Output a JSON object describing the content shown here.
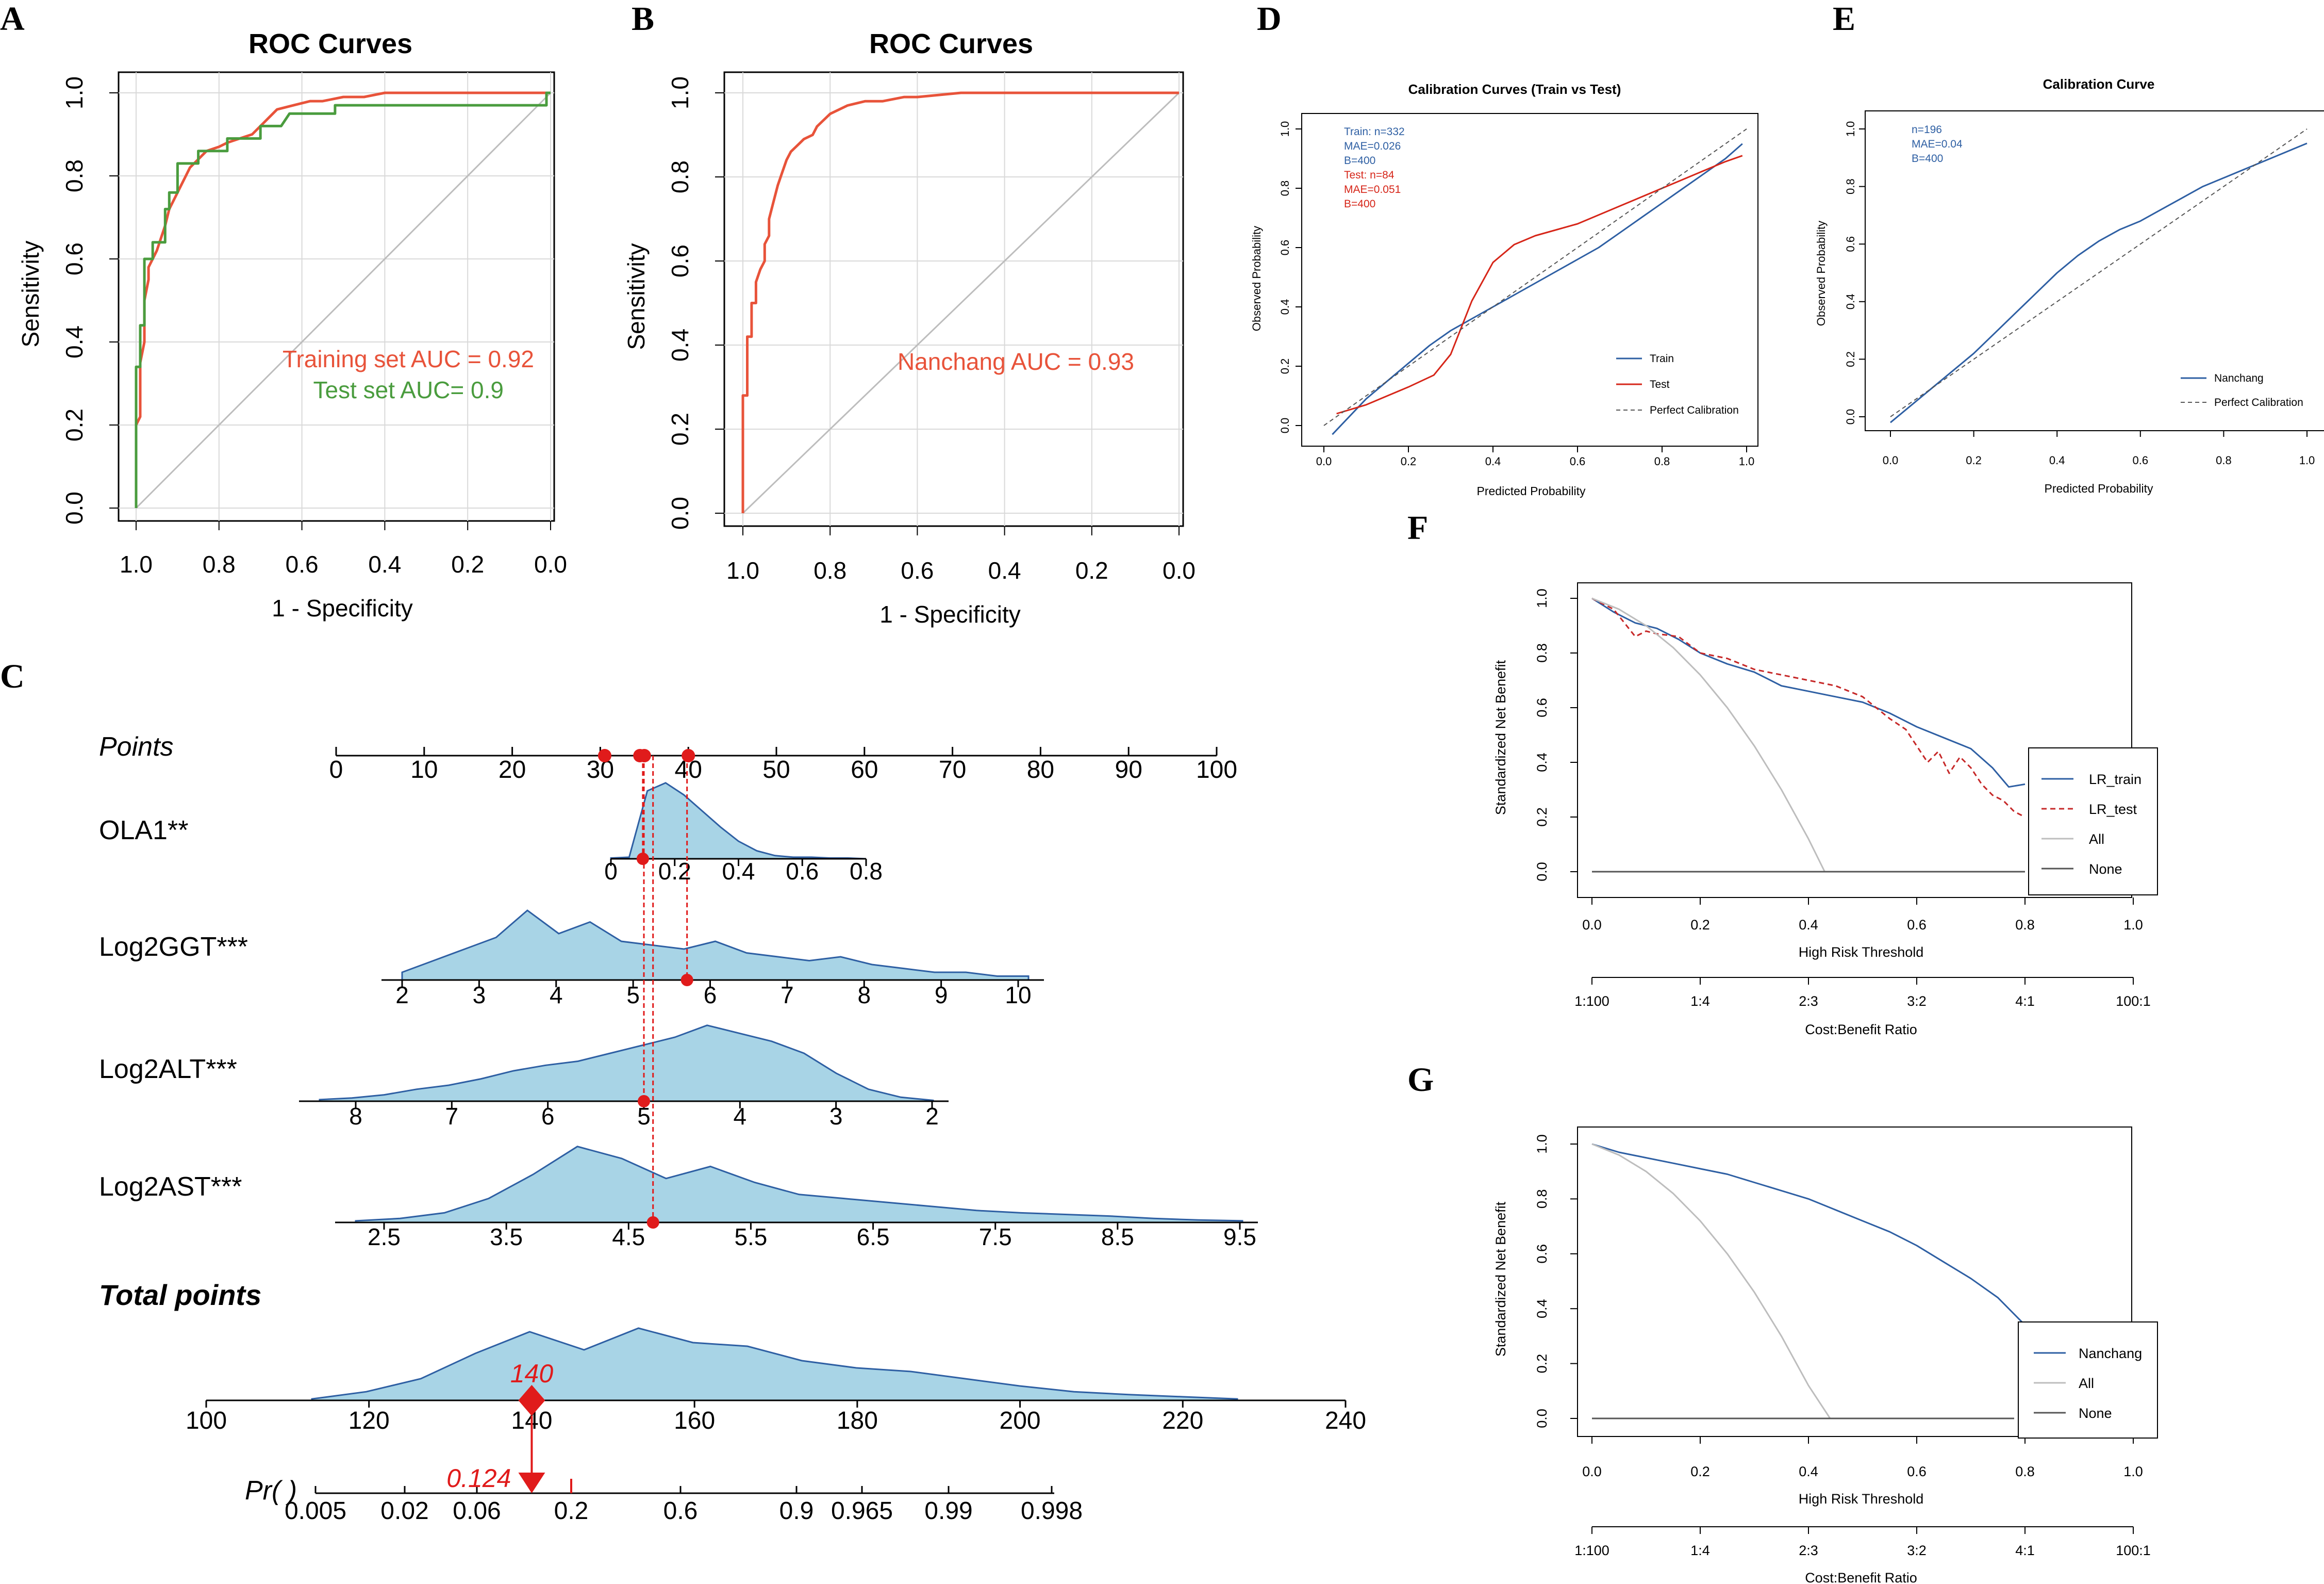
{
  "colors": {
    "train_red": "#e8533a",
    "test_green": "#4a9c3e",
    "blue": "#2e5fa3",
    "red": "#d62518",
    "fill": "#a8d4e6",
    "grid": "#d9d9d9",
    "grey": "#bdbdbd"
  },
  "panels": {
    "A": "A",
    "B": "B",
    "C": "C",
    "D": "D",
    "E": "E",
    "F": "F",
    "G": "G"
  },
  "chart_data": [
    {
      "id": "A",
      "type": "line",
      "title": "ROC Curves",
      "xlabel": "1 - Specificity",
      "ylabel": "Sensitivity",
      "xlim": [
        1.0,
        0.0
      ],
      "ylim": [
        0.0,
        1.0
      ],
      "xticks": [
        "1.0",
        "0.8",
        "0.6",
        "0.4",
        "0.2",
        "0.0"
      ],
      "yticks": [
        "0.0",
        "0.2",
        "0.4",
        "0.6",
        "0.8",
        "1.0"
      ],
      "series": [
        {
          "name": "Training set",
          "color": "#e8533a",
          "x": [
            1.0,
            1.0,
            0.99,
            0.99,
            0.98,
            0.98,
            0.97,
            0.97,
            0.96,
            0.95,
            0.94,
            0.93,
            0.92,
            0.91,
            0.9,
            0.89,
            0.88,
            0.87,
            0.85,
            0.83,
            0.8,
            0.78,
            0.75,
            0.72,
            0.7,
            0.68,
            0.66,
            0.62,
            0.58,
            0.55,
            0.5,
            0.45,
            0.4,
            0.3,
            0.2,
            0.1,
            0.0
          ],
          "y": [
            0.0,
            0.2,
            0.22,
            0.35,
            0.4,
            0.5,
            0.55,
            0.58,
            0.6,
            0.62,
            0.65,
            0.68,
            0.72,
            0.74,
            0.76,
            0.78,
            0.8,
            0.82,
            0.84,
            0.86,
            0.87,
            0.88,
            0.89,
            0.9,
            0.92,
            0.94,
            0.96,
            0.97,
            0.98,
            0.98,
            0.99,
            0.99,
            1.0,
            1.0,
            1.0,
            1.0,
            1.0
          ]
        },
        {
          "name": "Test set",
          "color": "#4a9c3e",
          "x": [
            1.0,
            1.0,
            0.99,
            0.99,
            0.98,
            0.98,
            0.96,
            0.96,
            0.93,
            0.93,
            0.92,
            0.92,
            0.9,
            0.9,
            0.88,
            0.85,
            0.85,
            0.78,
            0.78,
            0.73,
            0.7,
            0.7,
            0.65,
            0.63,
            0.55,
            0.52,
            0.52,
            0.4,
            0.2,
            0.01,
            0.01,
            0.0
          ],
          "y": [
            0.0,
            0.34,
            0.34,
            0.44,
            0.44,
            0.6,
            0.6,
            0.64,
            0.64,
            0.72,
            0.72,
            0.76,
            0.76,
            0.83,
            0.83,
            0.83,
            0.86,
            0.86,
            0.89,
            0.89,
            0.89,
            0.92,
            0.92,
            0.95,
            0.95,
            0.95,
            0.97,
            0.97,
            0.97,
            0.97,
            1.0,
            1.0
          ]
        }
      ],
      "annotations": [
        "Training set AUC = 0.92",
        "Test set AUC= 0.9"
      ]
    },
    {
      "id": "B",
      "type": "line",
      "title": "ROC Curves",
      "xlabel": "1 - Specificity",
      "ylabel": "Sensitivity",
      "xlim": [
        1.0,
        0.0
      ],
      "ylim": [
        0.0,
        1.0
      ],
      "xticks": [
        "1.0",
        "0.8",
        "0.6",
        "0.4",
        "0.2",
        "0.0"
      ],
      "yticks": [
        "0.0",
        "0.2",
        "0.4",
        "0.6",
        "0.8",
        "1.0"
      ],
      "series": [
        {
          "name": "Nanchang",
          "color": "#e8533a",
          "x": [
            1.0,
            1.0,
            0.99,
            0.99,
            0.98,
            0.98,
            0.97,
            0.97,
            0.96,
            0.95,
            0.95,
            0.94,
            0.94,
            0.93,
            0.92,
            0.91,
            0.9,
            0.89,
            0.88,
            0.87,
            0.86,
            0.84,
            0.83,
            0.82,
            0.8,
            0.78,
            0.76,
            0.72,
            0.68,
            0.63,
            0.6,
            0.5,
            0.3,
            0.0
          ],
          "y": [
            0.0,
            0.28,
            0.28,
            0.42,
            0.42,
            0.5,
            0.5,
            0.55,
            0.58,
            0.6,
            0.64,
            0.66,
            0.7,
            0.74,
            0.78,
            0.81,
            0.84,
            0.86,
            0.87,
            0.88,
            0.89,
            0.9,
            0.92,
            0.93,
            0.95,
            0.96,
            0.97,
            0.98,
            0.98,
            0.99,
            0.99,
            1.0,
            1.0,
            1.0
          ]
        }
      ],
      "annotations": [
        "Nanchang AUC = 0.93"
      ]
    },
    {
      "id": "D",
      "type": "line",
      "title": "Calibration Curves (Train vs Test)",
      "xlabel": "Predicted Probability",
      "ylabel": "Observed Probability",
      "xlim": [
        0.0,
        1.0
      ],
      "ylim": [
        0.0,
        1.0
      ],
      "xticks": [
        "0.0",
        "0.2",
        "0.4",
        "0.6",
        "0.8",
        "1.0"
      ],
      "yticks": [
        "0.0",
        "0.2",
        "0.4",
        "0.6",
        "0.8",
        "1.0"
      ],
      "stats_train": [
        "Train: n=332",
        "MAE=0.026",
        "B=400"
      ],
      "stats_test": [
        "Test: n=84",
        "MAE=0.051",
        "B=400"
      ],
      "series": [
        {
          "name": "Train",
          "color": "#2e5fa3",
          "x": [
            0.02,
            0.06,
            0.1,
            0.15,
            0.2,
            0.25,
            0.3,
            0.35,
            0.4,
            0.45,
            0.5,
            0.55,
            0.6,
            0.65,
            0.7,
            0.75,
            0.8,
            0.85,
            0.9,
            0.95,
            0.99
          ],
          "y": [
            -0.03,
            0.03,
            0.09,
            0.15,
            0.21,
            0.27,
            0.32,
            0.36,
            0.4,
            0.44,
            0.48,
            0.52,
            0.56,
            0.6,
            0.65,
            0.7,
            0.75,
            0.8,
            0.85,
            0.9,
            0.95
          ]
        },
        {
          "name": "Test",
          "color": "#d62518",
          "x": [
            0.03,
            0.1,
            0.15,
            0.2,
            0.26,
            0.3,
            0.35,
            0.4,
            0.45,
            0.5,
            0.55,
            0.6,
            0.65,
            0.7,
            0.75,
            0.8,
            0.85,
            0.9,
            0.95,
            0.99
          ],
          "y": [
            0.04,
            0.07,
            0.1,
            0.13,
            0.17,
            0.24,
            0.42,
            0.55,
            0.61,
            0.64,
            0.66,
            0.68,
            0.71,
            0.74,
            0.77,
            0.8,
            0.83,
            0.86,
            0.89,
            0.91
          ]
        },
        {
          "name": "Perfect Calibration",
          "color": "#555555",
          "dashed": true,
          "x": [
            0.0,
            1.0
          ],
          "y": [
            0.0,
            1.0
          ]
        }
      ]
    },
    {
      "id": "E",
      "type": "line",
      "title": "Calibration Curve",
      "xlabel": "Predicted Probability",
      "ylabel": "Observed Probability",
      "xlim": [
        0.0,
        1.0
      ],
      "ylim": [
        0.0,
        1.0
      ],
      "xticks": [
        "0.0",
        "0.2",
        "0.4",
        "0.6",
        "0.8",
        "1.0"
      ],
      "yticks": [
        "0.0",
        "0.2",
        "0.4",
        "0.6",
        "0.8",
        "1.0"
      ],
      "stats": [
        "n=196",
        "MAE=0.04",
        "B=400"
      ],
      "series": [
        {
          "name": "Nanchang",
          "color": "#2e5fa3",
          "x": [
            0.0,
            0.05,
            0.1,
            0.15,
            0.2,
            0.25,
            0.3,
            0.35,
            0.4,
            0.45,
            0.5,
            0.55,
            0.6,
            0.65,
            0.7,
            0.75,
            0.8,
            0.85,
            0.9,
            0.95,
            1.0
          ],
          "y": [
            -0.02,
            0.04,
            0.1,
            0.16,
            0.22,
            0.29,
            0.36,
            0.43,
            0.5,
            0.56,
            0.61,
            0.65,
            0.68,
            0.72,
            0.76,
            0.8,
            0.83,
            0.86,
            0.89,
            0.92,
            0.95
          ]
        },
        {
          "name": "Perfect Calibration",
          "color": "#555555",
          "dashed": true,
          "x": [
            0.0,
            1.0
          ],
          "y": [
            0.0,
            1.0
          ]
        }
      ]
    },
    {
      "id": "F",
      "type": "line",
      "xlabel": "High Risk Threshold",
      "ylabel": "Standardized Net Benefit",
      "xlabel2": "Cost:Benefit Ratio",
      "xlim": [
        0.0,
        1.0
      ],
      "ylim": [
        0.0,
        1.0
      ],
      "xticks": [
        "0.0",
        "0.2",
        "0.4",
        "0.6",
        "0.8",
        "1.0"
      ],
      "yticks": [
        "0.0",
        "0.2",
        "0.4",
        "0.6",
        "0.8",
        "1.0"
      ],
      "ratio_ticks": [
        "1:100",
        "1:4",
        "2:3",
        "3:2",
        "4:1",
        "100:1"
      ],
      "series": [
        {
          "name": "LR_train",
          "color": "#2e5fa3",
          "x": [
            0.0,
            0.04,
            0.08,
            0.12,
            0.16,
            0.2,
            0.25,
            0.3,
            0.35,
            0.4,
            0.45,
            0.5,
            0.55,
            0.6,
            0.65,
            0.7,
            0.74,
            0.77,
            0.8
          ],
          "y": [
            1.0,
            0.95,
            0.91,
            0.89,
            0.85,
            0.8,
            0.76,
            0.73,
            0.68,
            0.66,
            0.64,
            0.62,
            0.58,
            0.53,
            0.49,
            0.45,
            0.38,
            0.31,
            0.32
          ]
        },
        {
          "name": "LR_test",
          "color": "#c62828",
          "dashed": true,
          "x": [
            0.0,
            0.04,
            0.08,
            0.1,
            0.12,
            0.16,
            0.2,
            0.25,
            0.3,
            0.35,
            0.4,
            0.45,
            0.5,
            0.55,
            0.58,
            0.6,
            0.62,
            0.64,
            0.66,
            0.68,
            0.7,
            0.72,
            0.74,
            0.76,
            0.78,
            0.8
          ],
          "y": [
            1.0,
            0.96,
            0.86,
            0.88,
            0.87,
            0.86,
            0.8,
            0.78,
            0.74,
            0.72,
            0.7,
            0.68,
            0.64,
            0.56,
            0.52,
            0.46,
            0.4,
            0.44,
            0.36,
            0.42,
            0.38,
            0.32,
            0.28,
            0.26,
            0.22,
            0.2
          ]
        },
        {
          "name": "All",
          "color": "#bdbdbd",
          "x": [
            0.0,
            0.05,
            0.1,
            0.15,
            0.2,
            0.25,
            0.3,
            0.35,
            0.4,
            0.43
          ],
          "y": [
            1.0,
            0.96,
            0.9,
            0.82,
            0.72,
            0.6,
            0.46,
            0.3,
            0.12,
            0.0
          ]
        },
        {
          "name": "None",
          "color": "#555555",
          "x": [
            0.0,
            0.8
          ],
          "y": [
            0.0,
            0.0
          ]
        }
      ]
    },
    {
      "id": "G",
      "type": "line",
      "xlabel": "High Risk Threshold",
      "ylabel": "Standardized Net Benefit",
      "xlabel2": "Cost:Benefit Ratio",
      "xlim": [
        0.0,
        1.0
      ],
      "ylim": [
        0.0,
        1.0
      ],
      "xticks": [
        "0.0",
        "0.2",
        "0.4",
        "0.6",
        "0.8",
        "1.0"
      ],
      "yticks": [
        "0.0",
        "0.2",
        "0.4",
        "0.6",
        "0.8",
        "1.0"
      ],
      "ratio_ticks": [
        "1:100",
        "1:4",
        "2:3",
        "3:2",
        "4:1",
        "100:1"
      ],
      "series": [
        {
          "name": "Nanchang",
          "color": "#2e5fa3",
          "x": [
            0.0,
            0.05,
            0.1,
            0.15,
            0.2,
            0.25,
            0.3,
            0.35,
            0.4,
            0.45,
            0.5,
            0.55,
            0.6,
            0.65,
            0.7,
            0.75,
            0.78,
            0.8
          ],
          "y": [
            1.0,
            0.97,
            0.95,
            0.93,
            0.91,
            0.89,
            0.86,
            0.83,
            0.8,
            0.76,
            0.72,
            0.68,
            0.63,
            0.57,
            0.51,
            0.44,
            0.38,
            0.34
          ]
        },
        {
          "name": "All",
          "color": "#bdbdbd",
          "x": [
            0.0,
            0.05,
            0.1,
            0.15,
            0.2,
            0.25,
            0.3,
            0.35,
            0.4,
            0.44
          ],
          "y": [
            1.0,
            0.96,
            0.9,
            0.82,
            0.72,
            0.6,
            0.46,
            0.3,
            0.12,
            0.0
          ]
        },
        {
          "name": "None",
          "color": "#555555",
          "x": [
            0.0,
            0.78
          ],
          "y": [
            0.0,
            0.0
          ]
        }
      ]
    },
    {
      "id": "C",
      "type": "nomogram",
      "points_label": "Points",
      "points_ticks": [
        "0",
        "10",
        "20",
        "30",
        "40",
        "50",
        "60",
        "70",
        "80",
        "90",
        "100"
      ],
      "selected_points": [
        30.5,
        34.5,
        35,
        40
      ],
      "variables": [
        {
          "label": "OLA1**",
          "ticks": [
            "0",
            "0.2",
            "0.4",
            "0.6",
            "0.8"
          ],
          "value": 0.1,
          "density": [
            0.01,
            0.02,
            0.85,
            0.95,
            0.8,
            0.6,
            0.4,
            0.22,
            0.1,
            0.04,
            0.02,
            0.02,
            0.01,
            0.01,
            0.0
          ]
        },
        {
          "label": "Log2GGT***",
          "ticks": [
            "2",
            "3",
            "4",
            "5",
            "6",
            "7",
            "8",
            "9",
            "10"
          ],
          "value": 5.7,
          "density": [
            0.1,
            0.25,
            0.4,
            0.55,
            0.9,
            0.6,
            0.75,
            0.5,
            0.45,
            0.4,
            0.5,
            0.35,
            0.3,
            0.25,
            0.3,
            0.2,
            0.15,
            0.1,
            0.1,
            0.05,
            0.05
          ]
        },
        {
          "label": "Log2ALT***",
          "ticks": [
            "8",
            "7",
            "6",
            "5",
            "4",
            "3",
            "2"
          ],
          "value": 5.0,
          "density": [
            0.02,
            0.04,
            0.08,
            0.15,
            0.2,
            0.28,
            0.38,
            0.45,
            0.5,
            0.6,
            0.7,
            0.8,
            0.95,
            0.85,
            0.75,
            0.6,
            0.35,
            0.15,
            0.05,
            0.01
          ]
        },
        {
          "label": "Log2AST***",
          "ticks": [
            "2.5",
            "3.5",
            "4.5",
            "5.5",
            "6.5",
            "7.5",
            "8.5",
            "9.5"
          ],
          "value": 4.7,
          "density": [
            0.02,
            0.05,
            0.12,
            0.3,
            0.6,
            0.95,
            0.8,
            0.55,
            0.7,
            0.5,
            0.35,
            0.3,
            0.25,
            0.2,
            0.15,
            0.12,
            0.1,
            0.08,
            0.05,
            0.03,
            0.02
          ]
        }
      ],
      "total_label": "Total points",
      "total_ticks": [
        "100",
        "120",
        "140",
        "160",
        "180",
        "200",
        "220",
        "240"
      ],
      "total_value": 140,
      "total_value_label": "140",
      "total_density": [
        0.02,
        0.12,
        0.3,
        0.65,
        0.95,
        0.7,
        1.0,
        0.8,
        0.75,
        0.55,
        0.45,
        0.4,
        0.3,
        0.2,
        0.12,
        0.08,
        0.05,
        0.02
      ],
      "pr_label": "Pr( )",
      "pr_ticks": [
        "0.005",
        "0.02",
        "0.06",
        "0.2",
        "0.6",
        "0.9",
        "0.965",
        "0.99",
        "0.998"
      ],
      "pr_value_label": "0.124"
    }
  ]
}
